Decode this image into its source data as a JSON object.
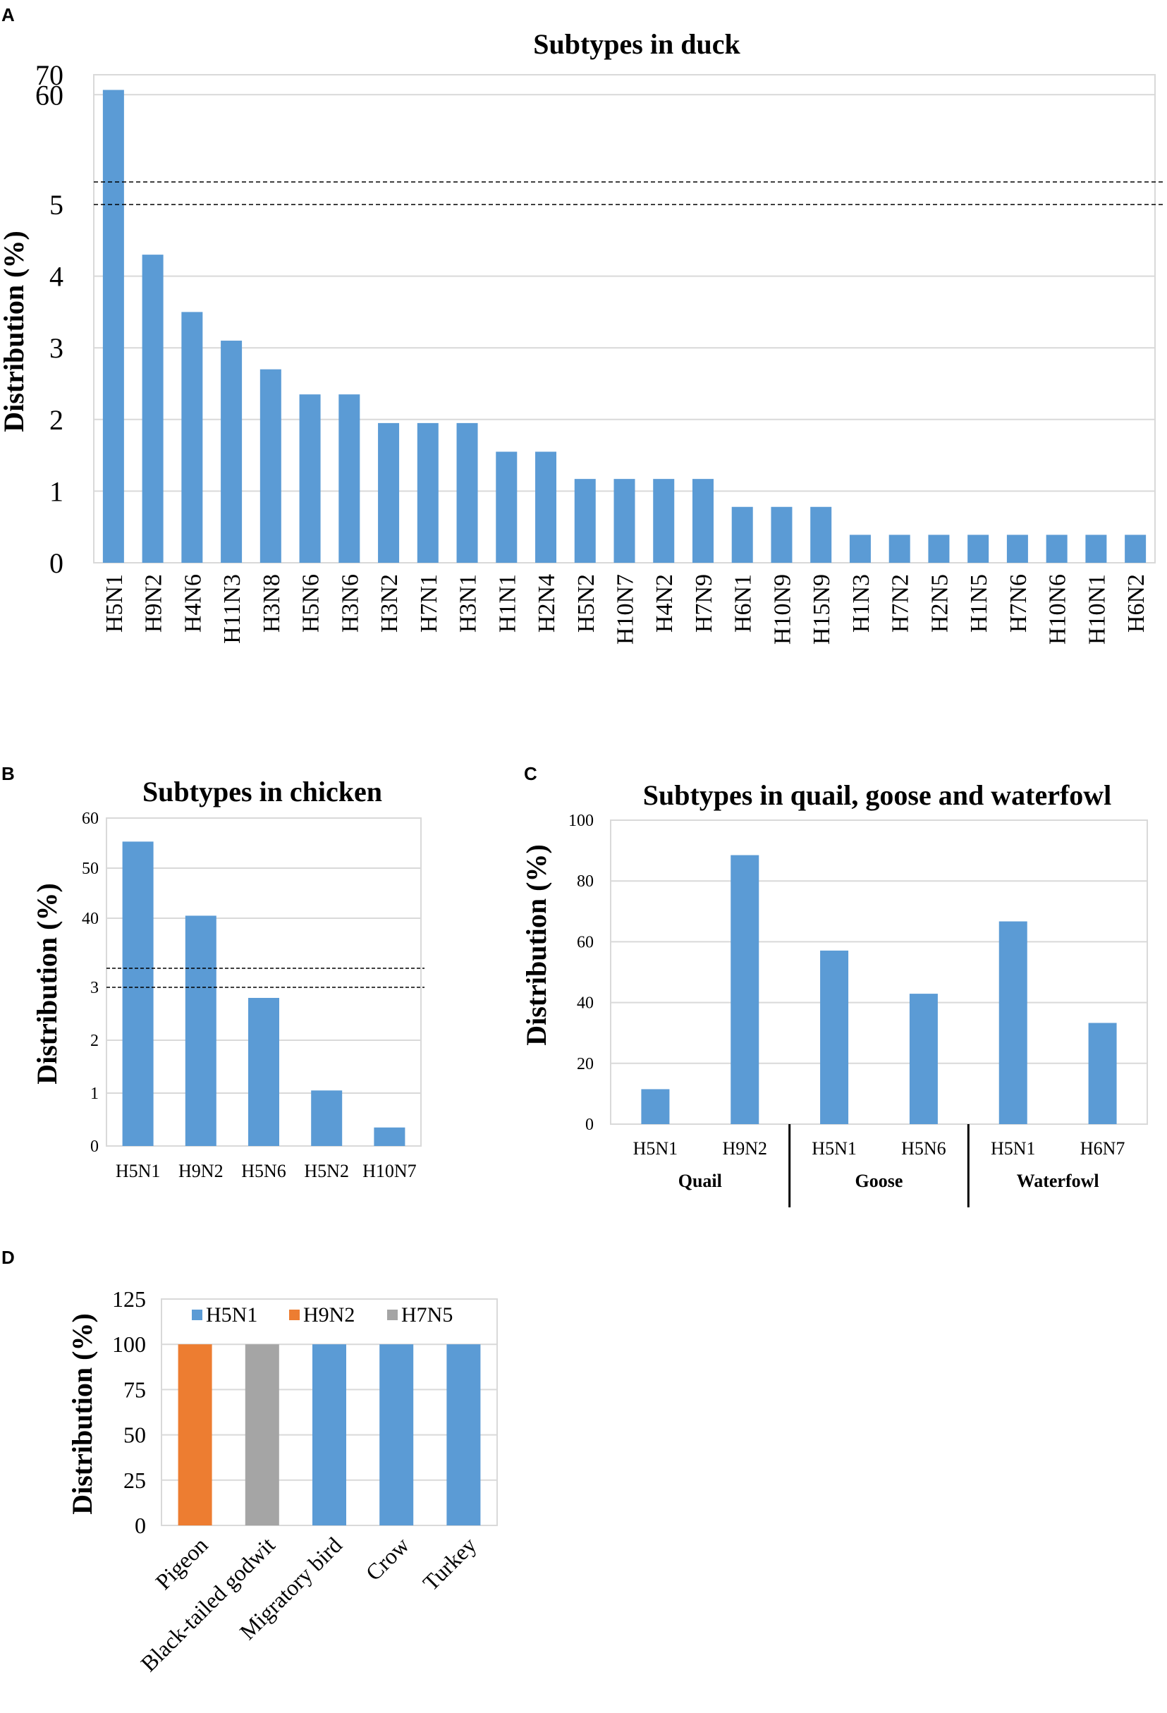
{
  "chart_data": [
    {
      "panel": "A",
      "type": "bar",
      "title": "Subtypes in duck",
      "xlabel": "",
      "ylabel": "Distribution (%)",
      "axis_break": {
        "lower_range": [
          0,
          5
        ],
        "upper_range": [
          5,
          70
        ]
      },
      "lower_ticks": [
        "0",
        "1",
        "2",
        "3",
        "4",
        "5"
      ],
      "upper_ticks": [
        "60",
        "70"
      ],
      "categories": [
        "H5N1",
        "H9N2",
        "H4N6",
        "H11N3",
        "H3N8",
        "H5N6",
        "H3N6",
        "H3N2",
        "H7N1",
        "H3N1",
        "H1N1",
        "H2N4",
        "H5N2",
        "H10N7",
        "H4N2",
        "H7N9",
        "H6N1",
        "H10N9",
        "H15N9",
        "H1N3",
        "H7N2",
        "H2N5",
        "H1N5",
        "H7N6",
        "H10N6",
        "H10N1",
        "H6N2"
      ],
      "values": [
        62.4,
        4.3,
        3.5,
        3.1,
        2.7,
        2.35,
        2.35,
        1.95,
        1.95,
        1.95,
        1.55,
        1.55,
        1.17,
        1.17,
        1.17,
        1.17,
        0.78,
        0.78,
        0.78,
        0.39,
        0.39,
        0.39,
        0.39,
        0.39,
        0.39,
        0.39,
        0.39
      ],
      "color": "#5b9bd5"
    },
    {
      "panel": "B",
      "type": "bar",
      "title": "Subtypes in chicken",
      "xlabel": "",
      "ylabel": "Distribution (%)",
      "axis_break": {
        "lower_range": [
          0,
          3
        ],
        "upper_range": [
          30,
          60
        ]
      },
      "lower_ticks": [
        "0",
        "1",
        "2",
        "3"
      ],
      "upper_ticks": [
        "40",
        "50",
        "60"
      ],
      "categories": [
        "H5N1",
        "H9N2",
        "H5N6",
        "H5N2",
        "H10N7"
      ],
      "values": [
        55.3,
        40.5,
        2.8,
        1.05,
        0.35
      ],
      "color": "#5b9bd5"
    },
    {
      "panel": "C",
      "type": "bar",
      "title": "Subtypes in quail, goose and waterfowl",
      "xlabel": "",
      "ylabel": "Distribution (%)",
      "ylim": [
        0,
        100
      ],
      "ticks": [
        "0",
        "20",
        "40",
        "60",
        "80",
        "100"
      ],
      "categories": [
        "H5N1",
        "H9N2",
        "H5N1",
        "H5N6",
        "H5N1",
        "H6N7"
      ],
      "groups": [
        "Quail",
        "Goose",
        "Waterfowl"
      ],
      "values": [
        11.5,
        88.5,
        57.1,
        42.9,
        66.7,
        33.3
      ],
      "color": "#5b9bd5"
    },
    {
      "panel": "D",
      "type": "bar",
      "title": "",
      "xlabel": "",
      "ylabel": "Distribution (%)",
      "ylim": [
        0,
        125
      ],
      "ticks": [
        "0",
        "25",
        "50",
        "75",
        "100",
        "125"
      ],
      "categories": [
        "Pigeon",
        "Black-tailed godwit",
        "Migratory bird",
        "Crow",
        "Turkey"
      ],
      "values": [
        100,
        100,
        100,
        100,
        100
      ],
      "bar_series": [
        "H9N2",
        "H7N5",
        "H5N1",
        "H5N1",
        "H5N1"
      ],
      "legend": [
        {
          "name": "H5N1",
          "color": "#5b9bd5"
        },
        {
          "name": "H9N2",
          "color": "#ed7d31"
        },
        {
          "name": "H7N5",
          "color": "#a5a5a5"
        }
      ]
    }
  ],
  "panel_labels": {
    "a": "A",
    "b": "B",
    "c": "C",
    "d": "D"
  }
}
